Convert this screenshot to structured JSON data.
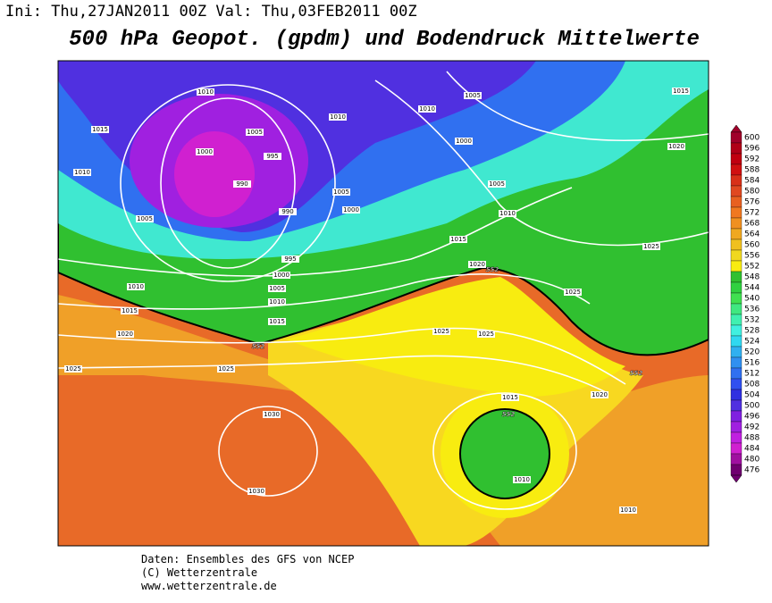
{
  "header": {
    "run": "Ini: Thu,27JAN2011 00Z  Val: Thu,03FEB2011 00Z",
    "title": "500 hPa Geopot. (gpdm) und Bodendruck Mittelwerte"
  },
  "colorbar": {
    "levels": [
      600,
      596,
      592,
      588,
      584,
      580,
      576,
      572,
      568,
      564,
      560,
      556,
      552,
      548,
      544,
      540,
      536,
      532,
      528,
      524,
      520,
      516,
      512,
      508,
      504,
      500,
      496,
      492,
      488,
      484,
      480,
      476
    ],
    "colors": [
      "#a0002a",
      "#b00018",
      "#c00010",
      "#d01010",
      "#d83018",
      "#e04820",
      "#e86020",
      "#f07820",
      "#f09020",
      "#f0a820",
      "#f0c020",
      "#f0d820",
      "#f8ec10",
      "#30c030",
      "#30d040",
      "#40e050",
      "#40e880",
      "#40f0b0",
      "#40f0e0",
      "#30d8f0",
      "#30b0f0",
      "#3090f0",
      "#3070f0",
      "#3050f0",
      "#3030e0",
      "#5030e0",
      "#8020e0",
      "#a020e0",
      "#c020e0",
      "#d020d0",
      "#a010a0",
      "#700070"
    ]
  },
  "contour_labels": [
    "1010",
    "1015",
    "1010",
    "1005",
    "1000",
    "1005",
    "995",
    "990",
    "990",
    "1010",
    "1005",
    "1000",
    "995",
    "1000",
    "1005",
    "1010",
    "1015",
    "1010",
    "1015",
    "1020",
    "1025",
    "1025",
    "1030",
    "1030",
    "1010",
    "1005",
    "1000",
    "1005",
    "1010",
    "1015",
    "1020",
    "1015",
    "1020",
    "1025",
    "1025",
    "1025",
    "1025",
    "1020",
    "1015",
    "1010",
    "1010",
    "552",
    "552",
    "552",
    "552"
  ],
  "footer": {
    "source": "Daten: Ensembles des GFS von NCEP",
    "copyright": "(C) Wetterzentrale",
    "url": "www.wetterzentrale.de"
  }
}
